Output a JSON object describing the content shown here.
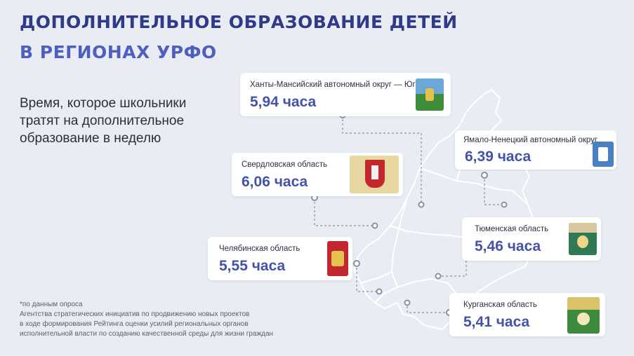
{
  "header": {
    "title_line1": "ДОПОЛНИТЕЛЬНОЕ ОБРАЗОВАНИЕ ДЕТЕЙ",
    "title_line2": "В РЕГИОНАХ УРФО"
  },
  "subtitle": "Время, которое школьники тратят на дополнительное образование в неделю",
  "regions": [
    {
      "name": "Ханты-Мансийский автономный округ — Югра",
      "value": "5,94 часа",
      "crest_color": "#3f8c3a"
    },
    {
      "name": "Ямало-Ненецкий автономный округ",
      "value": "6,39 часа",
      "crest_color": "#4a7fc2"
    },
    {
      "name": "Свердловская область",
      "value": "6,06 часа",
      "crest_color": "#d8b230"
    },
    {
      "name": "Тюменская область",
      "value": "5,46 часа",
      "crest_color": "#2f7a55"
    },
    {
      "name": "Челябинская область",
      "value": "5,55 часа",
      "crest_color": "#c1272d"
    },
    {
      "name": "Курганская область",
      "value": "5,41 часа",
      "crest_color": "#3d8a3c"
    }
  ],
  "footnote": {
    "line1": "*по данным опроса",
    "line2": "Агентства стратегических инициатив по продвижению новых проектов",
    "line3": "в ходе формирования Рейтинга оценки усилий региональных органов",
    "line4": "исполнительной власти по созданию качественной среды для жизни граждан"
  },
  "colors": {
    "background": "#e9edf3",
    "title_dark": "#2f3a8b",
    "title_light": "#4f5fc0",
    "value_text": "#4353aa",
    "map_outline": "#ffffff"
  }
}
